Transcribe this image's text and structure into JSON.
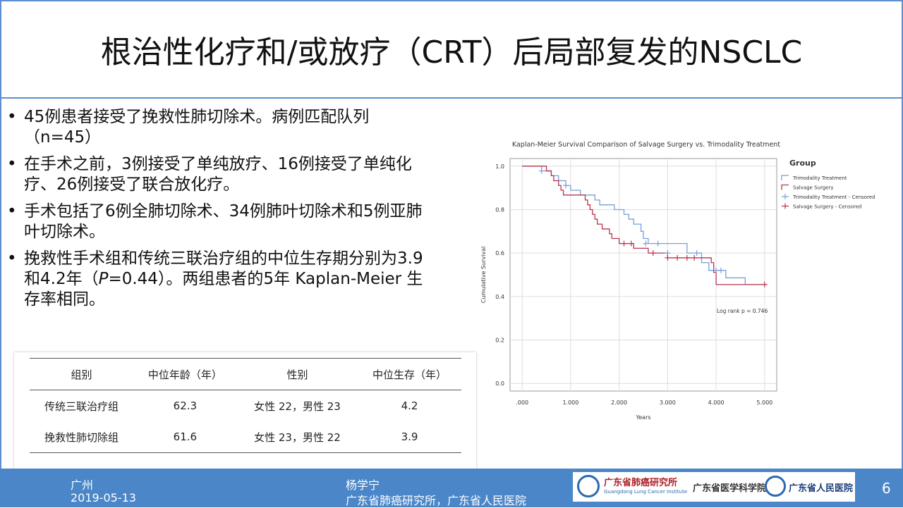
{
  "header": {
    "title": "根治性化疗和/或放疗（CRT）后局部复发的NSCLC"
  },
  "bullets": [
    "45例患者接受了挽救性肺切除术。病例匹配队列（n=45）",
    "在手术之前，3例接受了单纯放疗、16例接受了单纯化疗、26例接受了联合放化疗。",
    "手术包括了6例全肺切除术、34例肺叶切除术和5例亚肺叶切除术。",
    [
      "挽救性手术组和传统三联治疗组的中位生存期分别为3.9和4.2年（",
      "P",
      "=0.44）。两组患者的5年 Kaplan-Meier 生存率相同。"
    ]
  ],
  "table": {
    "header": [
      "组别",
      "中位年龄（年）",
      "性别",
      "中位生存（年）"
    ],
    "rows": [
      [
        "传统三联治疗组",
        "62.3",
        "女性 22，男性 23",
        "4.2"
      ],
      [
        "挽救性肺切除组",
        "61.6",
        "女性 23，男性 22",
        "3.9"
      ]
    ]
  },
  "chart_data": {
    "type": "step",
    "title": "Kaplan-Meier Survival Comparison of Salvage Surgery vs. Trimodality Treatment",
    "x_label": "Years",
    "y_label": "Cumulative Survival",
    "legend_title": "Group",
    "annotation": "Log rank p = 0.746",
    "grid": true,
    "xlim": [
      -0.25,
      5.25
    ],
    "xticks": [
      {
        "value": 0,
        "label": ".000"
      },
      {
        "value": 1,
        "label": "1.000"
      },
      {
        "value": 2,
        "label": "2.000"
      },
      {
        "value": 3,
        "label": "3.000"
      },
      {
        "value": 4,
        "label": "4.000"
      },
      {
        "value": 5,
        "label": "5.000"
      }
    ],
    "ylim": [
      -0.035,
      1.035
    ],
    "yticks": [
      {
        "value": 0,
        "label": "0.0"
      },
      0.2,
      0.4,
      0.6,
      0.8,
      {
        "value": 1,
        "label": "1.0"
      }
    ],
    "series": [
      {
        "name": "Trimodality Treatment",
        "type": "step",
        "color": "#7a9fd8",
        "x": [
          0,
          0.4,
          0.6,
          0.75,
          0.9,
          1.0,
          1.2,
          1.5,
          1.6,
          1.9,
          2.1,
          2.2,
          2.3,
          2.45,
          2.5,
          2.6,
          3.4,
          3.7,
          3.85,
          4.2,
          4.6,
          5.0
        ],
        "values": [
          1.0,
          0.978,
          0.956,
          0.933,
          0.911,
          0.889,
          0.867,
          0.844,
          0.822,
          0.8,
          0.778,
          0.756,
          0.733,
          0.7,
          0.667,
          0.644,
          0.6,
          0.556,
          0.52,
          0.486,
          0.455,
          0.455
        ]
      },
      {
        "name": "Salvage Surgery",
        "type": "step",
        "color": "#b8344f",
        "x": [
          0,
          0.5,
          0.6,
          0.65,
          0.75,
          0.8,
          0.85,
          1.3,
          1.35,
          1.4,
          1.45,
          1.5,
          1.55,
          1.65,
          1.8,
          1.85,
          2.0,
          2.3,
          2.6,
          3.0,
          3.9,
          3.95,
          4.0,
          5.0
        ],
        "values": [
          1.0,
          0.978,
          0.956,
          0.933,
          0.911,
          0.889,
          0.867,
          0.844,
          0.822,
          0.8,
          0.778,
          0.756,
          0.733,
          0.711,
          0.689,
          0.667,
          0.644,
          0.622,
          0.6,
          0.578,
          0.556,
          0.511,
          0.455,
          0.455
        ]
      },
      {
        "name": "Trimodality Treatment - Censored",
        "type": "censored",
        "color": "#7a9fd8",
        "x": [
          0.4,
          0.9,
          2.55,
          2.8,
          3.0,
          3.6,
          4.0,
          4.1
        ],
        "values": [
          0.978,
          0.911,
          0.644,
          0.644,
          0.6,
          0.6,
          0.52,
          0.52
        ]
      },
      {
        "name": "Salvage Surgery - Censored",
        "type": "censored",
        "color": "#b8344f",
        "x": [
          2.1,
          2.25,
          2.7,
          3.0,
          3.2,
          3.4,
          3.55,
          5.0
        ],
        "values": [
          0.644,
          0.644,
          0.6,
          0.578,
          0.578,
          0.578,
          0.578,
          0.455
        ]
      }
    ]
  },
  "footer": {
    "city": "广州",
    "date": "2019-05-13",
    "author": "杨学宁",
    "affiliation": "广东省肺癌研究所，广东省人民医院",
    "page": "6",
    "logos": [
      "广东省肺癌研究所",
      "Guangdong Lung Cancer Institute",
      "广东省医学科学院",
      "广东省人民医院"
    ]
  }
}
